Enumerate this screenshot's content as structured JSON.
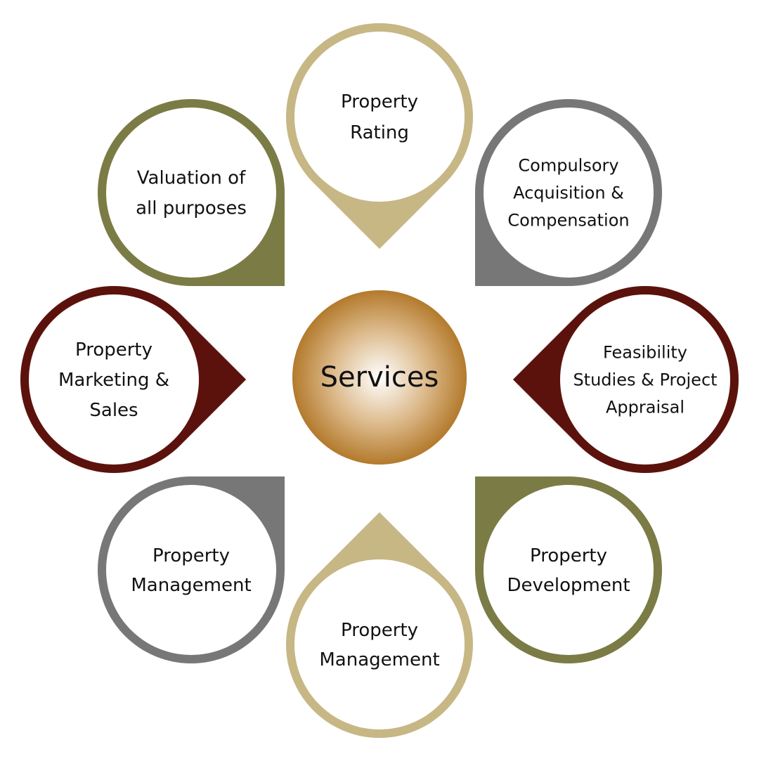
{
  "center": {
    "label": "Services",
    "text_color": "#5a3b12",
    "gradient": {
      "inner": "#ffffff",
      "mid": "#dcb98a",
      "outer": "#b37a2c"
    }
  },
  "colors": {
    "beige": "#c7b785",
    "grey": "#777777",
    "olive": "#7b7b45",
    "maroon": "#5c120c"
  },
  "items": [
    {
      "id": "property-rating",
      "lines": [
        "Property",
        "Rating"
      ],
      "color": "beige",
      "pointer": "down"
    },
    {
      "id": "compulsory-acquisition",
      "lines": [
        "Compulsory",
        "Acquisition &",
        "Compensation"
      ],
      "color": "grey",
      "pointer": "bottom-left"
    },
    {
      "id": "feasibility-studies",
      "lines": [
        "Feasibility",
        "Studies & Project",
        "Appraisal"
      ],
      "color": "maroon",
      "pointer": "left"
    },
    {
      "id": "property-development",
      "lines": [
        "Property",
        "Development"
      ],
      "color": "olive",
      "pointer": "top-left"
    },
    {
      "id": "property-management-bottom",
      "lines": [
        "Property",
        "Management"
      ],
      "color": "beige",
      "pointer": "up"
    },
    {
      "id": "property-management-left",
      "lines": [
        "Property",
        "Management"
      ],
      "color": "grey",
      "pointer": "top-right"
    },
    {
      "id": "property-marketing-sales",
      "lines": [
        "Property",
        "Marketing &",
        "Sales"
      ],
      "color": "maroon",
      "pointer": "right"
    },
    {
      "id": "valuation",
      "lines": [
        "Valuation of",
        "all purposes"
      ],
      "color": "olive",
      "pointer": "bottom-right"
    }
  ]
}
